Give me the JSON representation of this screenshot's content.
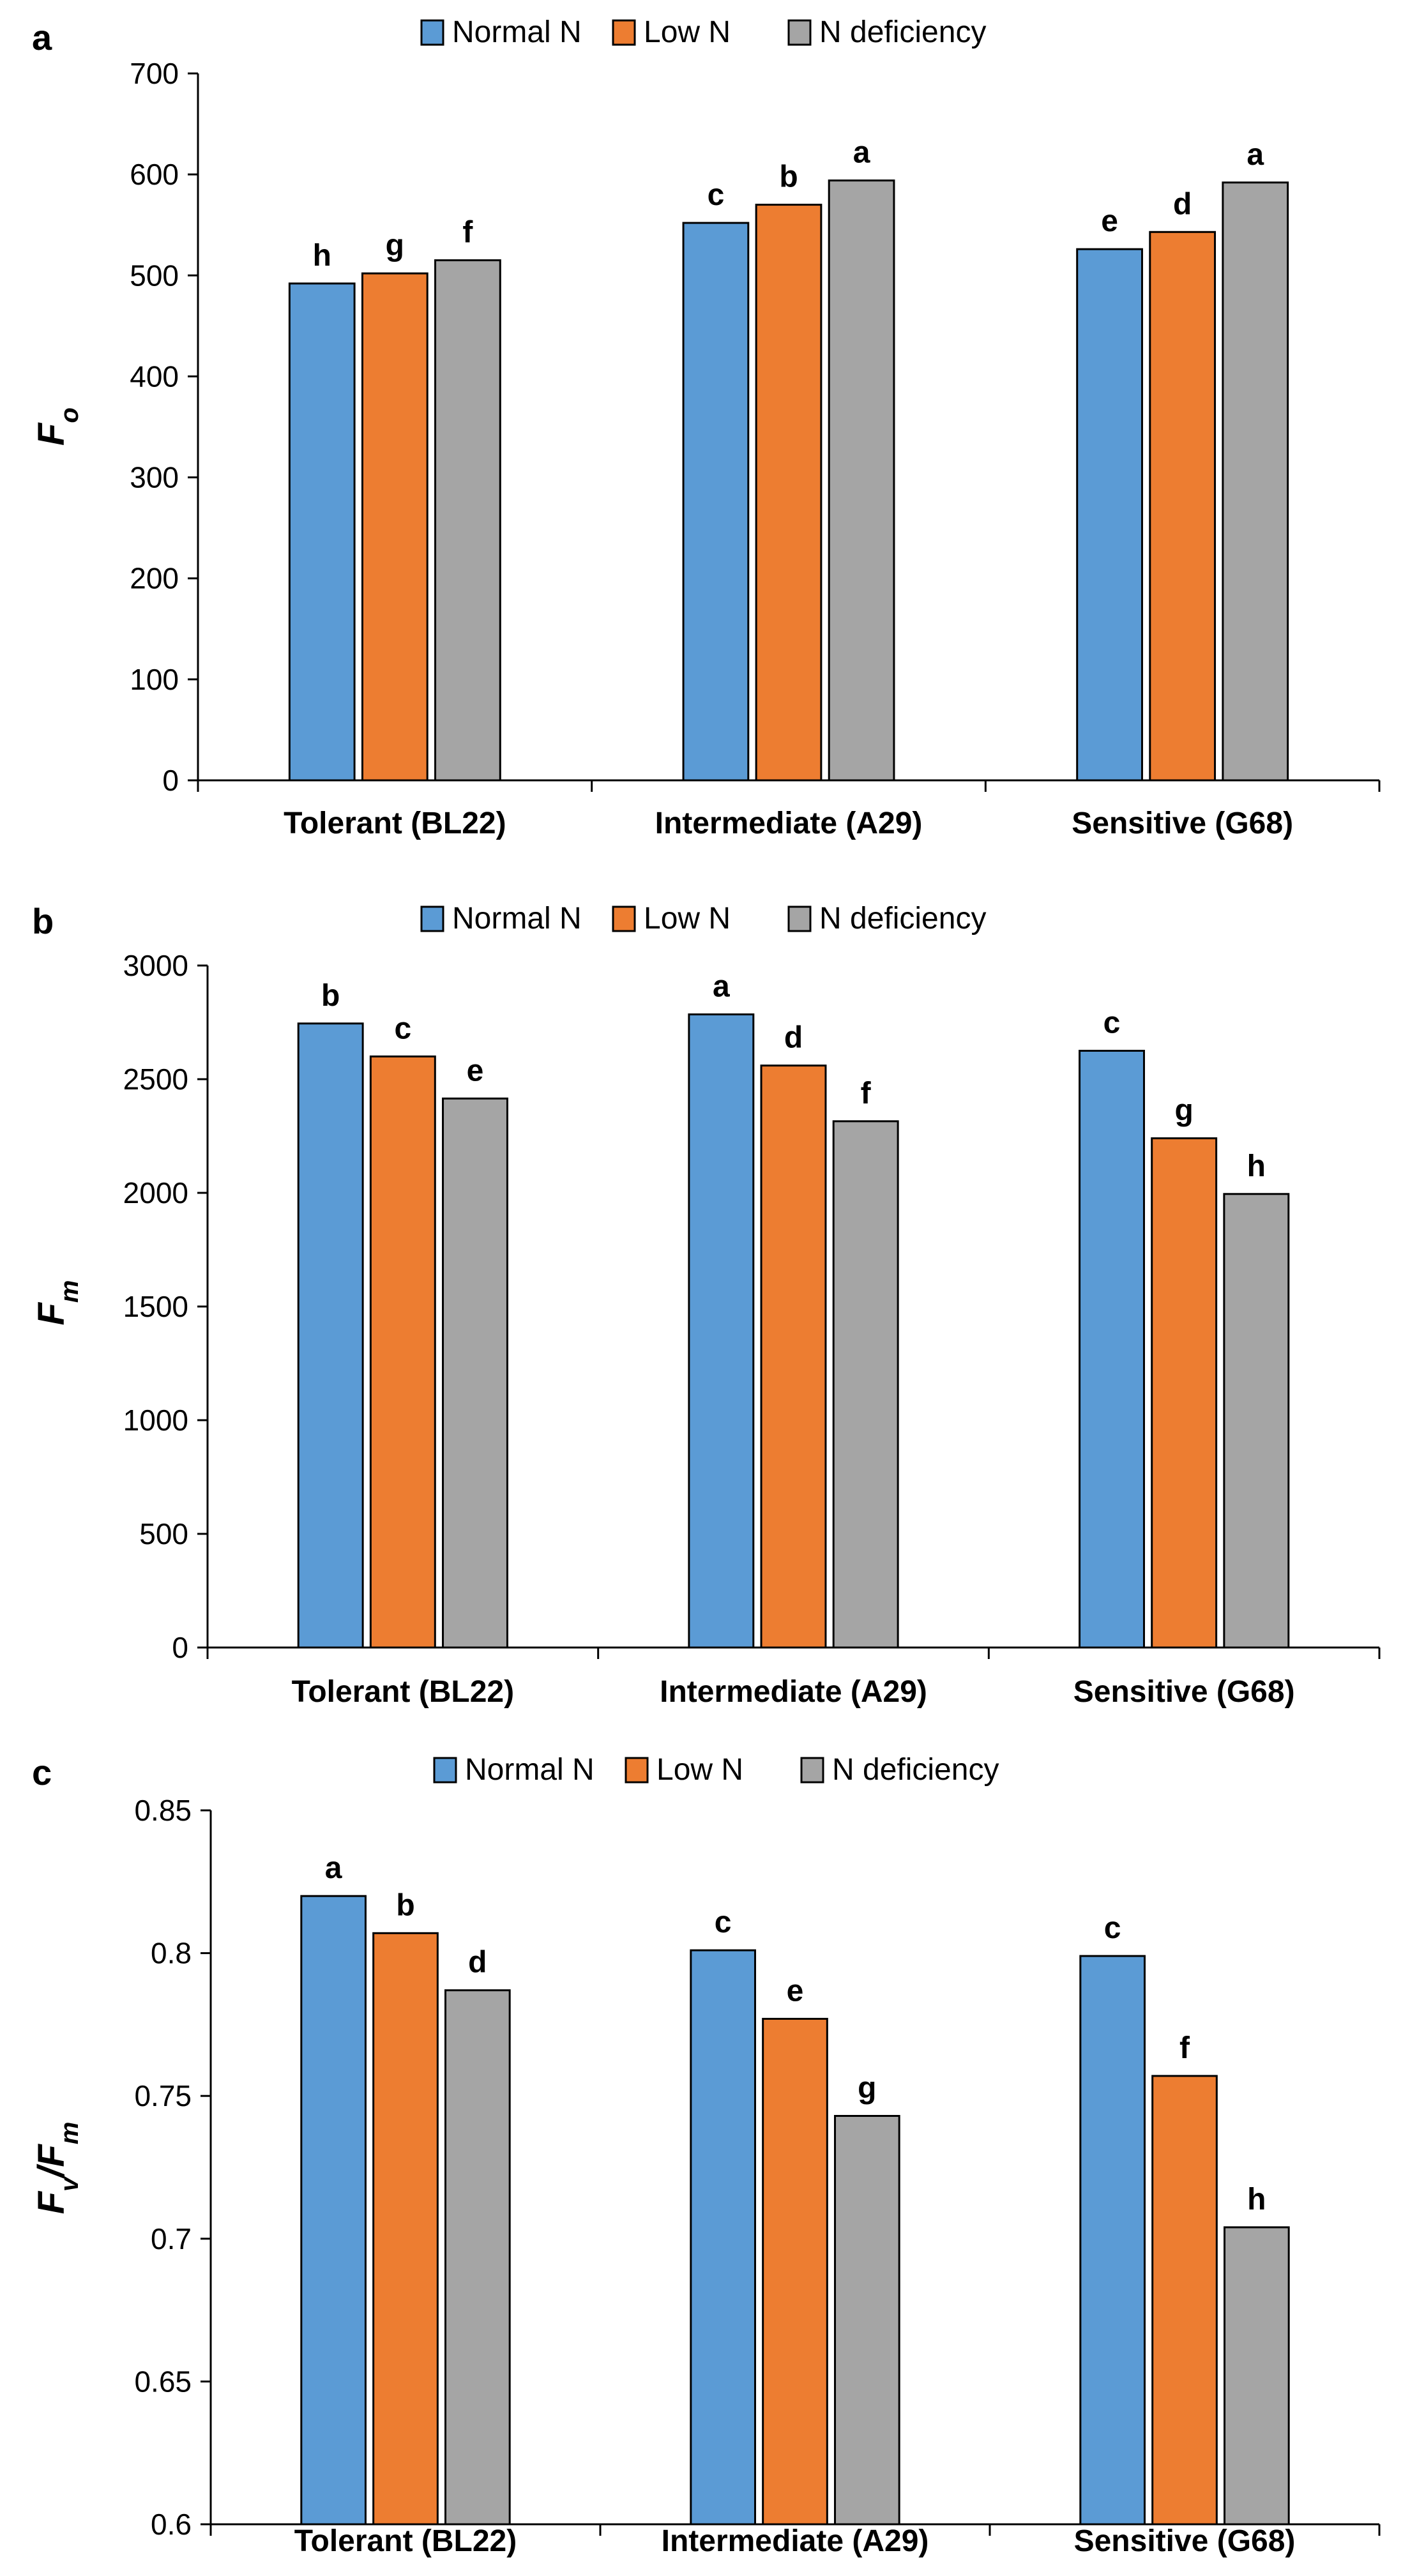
{
  "legend": [
    "Normal N",
    "Low N",
    "N deficiency"
  ],
  "colors": {
    "series": [
      "#5b9bd5",
      "#ed7d31",
      "#a5a5a5"
    ],
    "axis": "#000000",
    "text": "#000000"
  },
  "chart_data": [
    {
      "panel": "a",
      "type": "bar",
      "title": "",
      "xlabel": "",
      "ylabel": "F0",
      "ylabel_main": "F",
      "ylabel_sub": "o",
      "ylabel_sub_is_subscript": true,
      "ylim": [
        0,
        700
      ],
      "yticks": [
        "0",
        "100",
        "200",
        "300",
        "400",
        "500",
        "600",
        "700"
      ],
      "categories": [
        "Tolerant (BL22)",
        "Intermediate (A29)",
        "Sensitive (G68)"
      ],
      "legend_position": "top",
      "grid": false,
      "series": [
        {
          "name": "Normal N",
          "values": [
            492,
            552,
            526
          ],
          "labels": [
            "h",
            "c",
            "e"
          ]
        },
        {
          "name": "Low N",
          "values": [
            502,
            570,
            543
          ],
          "labels": [
            "g",
            "b",
            "d"
          ]
        },
        {
          "name": "N deficiency",
          "values": [
            515,
            594,
            592
          ],
          "labels": [
            "f",
            "a",
            "a"
          ]
        }
      ]
    },
    {
      "panel": "b",
      "type": "bar",
      "title": "",
      "xlabel": "",
      "ylabel": "Fm",
      "ylabel_main": "F",
      "ylabel_sub": "m",
      "ylabel_sub_is_subscript": true,
      "ylim": [
        0,
        3000
      ],
      "yticks": [
        "0",
        "500",
        "1000",
        "1500",
        "2000",
        "2500",
        "3000"
      ],
      "categories": [
        "Tolerant (BL22)",
        "Intermediate (A29)",
        "Sensitive (G68)"
      ],
      "legend_position": "top",
      "grid": false,
      "series": [
        {
          "name": "Normal N",
          "values": [
            2745,
            2785,
            2625
          ],
          "labels": [
            "b",
            "a",
            "c"
          ]
        },
        {
          "name": "Low N",
          "values": [
            2600,
            2560,
            2240
          ],
          "labels": [
            "c",
            "d",
            "g"
          ]
        },
        {
          "name": "N deficiency",
          "values": [
            2415,
            2315,
            1995
          ],
          "labels": [
            "e",
            "f",
            "h"
          ]
        }
      ]
    },
    {
      "panel": "c",
      "type": "bar",
      "title": "",
      "xlabel": "",
      "ylabel": "Fv/Fm",
      "ylabel_main": "F",
      "ylabel_sub": "v",
      "ylabel_mid": "/",
      "ylabel_main2": "F",
      "ylabel_sub2": "m",
      "ylabel_sub_is_subscript": true,
      "ylim": [
        0.6,
        0.85
      ],
      "yticks": [
        "0.6",
        "0.65",
        "0.7",
        "0.75",
        "0.8",
        "0.85"
      ],
      "categories": [
        "Tolerant (BL22)",
        "Intermediate (A29)",
        "Sensitive (G68)"
      ],
      "legend_position": "top",
      "grid": false,
      "series": [
        {
          "name": "Normal N",
          "values": [
            0.82,
            0.801,
            0.799
          ],
          "labels": [
            "a",
            "c",
            "c"
          ]
        },
        {
          "name": "Low N",
          "values": [
            0.807,
            0.777,
            0.757
          ],
          "labels": [
            "b",
            "e",
            "f"
          ]
        },
        {
          "name": "N deficiency",
          "values": [
            0.787,
            0.743,
            0.704
          ],
          "labels": [
            "d",
            "g",
            "h"
          ]
        }
      ]
    }
  ]
}
